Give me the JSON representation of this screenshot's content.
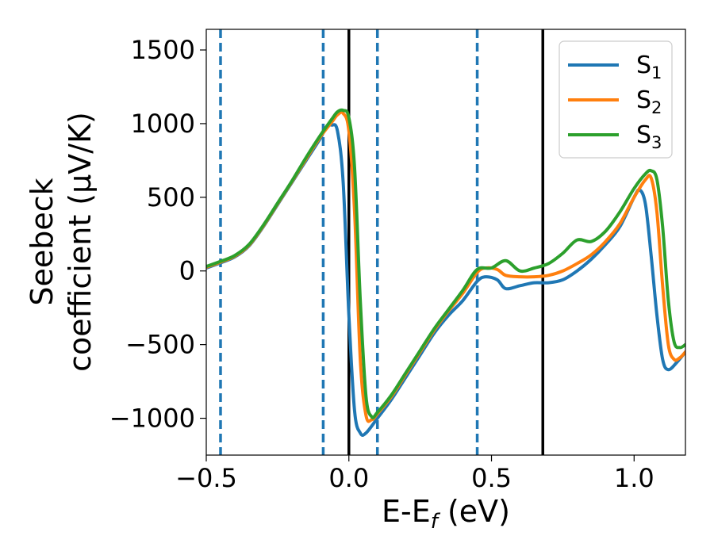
{
  "chart_data": {
    "type": "line",
    "xlabel": "E-E",
    "xlabel_sub": "f",
    "xlabel_unit": " (eV)",
    "ylabel_line1": "Seebeck",
    "ylabel_line2": "coefficient  (μV/K)",
    "xlim": [
      -0.5,
      1.18
    ],
    "ylim": [
      -1250,
      1640
    ],
    "xticks": [
      -0.5,
      0.0,
      0.5,
      1.0
    ],
    "xtick_labels": [
      "−0.5",
      "0.0",
      "0.5",
      "1.0"
    ],
    "yticks": [
      -1000,
      -500,
      0,
      500,
      1000,
      1500
    ],
    "ytick_labels": [
      "−1000",
      "−500",
      "0",
      "500",
      "1000",
      "1500"
    ],
    "grid": false,
    "legend_position": "top-right",
    "vlines_dashed": {
      "color": "#1f77b4",
      "x": [
        -0.45,
        -0.09,
        0.1,
        0.45
      ]
    },
    "vlines_solid": {
      "color": "#000000",
      "x": [
        0.0,
        0.68
      ]
    },
    "series": [
      {
        "name": "S",
        "name_sub": "1",
        "color": "#1f77b4",
        "points": [
          [
            -0.5,
            20
          ],
          [
            -0.45,
            55
          ],
          [
            -0.4,
            95
          ],
          [
            -0.35,
            170
          ],
          [
            -0.3,
            300
          ],
          [
            -0.25,
            450
          ],
          [
            -0.2,
            600
          ],
          [
            -0.15,
            750
          ],
          [
            -0.1,
            900
          ],
          [
            -0.08,
            975
          ],
          [
            -0.06,
            990
          ],
          [
            -0.04,
            950
          ],
          [
            -0.02,
            600
          ],
          [
            0.0,
            -300
          ],
          [
            0.02,
            -950
          ],
          [
            0.04,
            -1100
          ],
          [
            0.06,
            -1100
          ],
          [
            0.1,
            -1000
          ],
          [
            0.15,
            -870
          ],
          [
            0.2,
            -720
          ],
          [
            0.25,
            -570
          ],
          [
            0.3,
            -420
          ],
          [
            0.35,
            -300
          ],
          [
            0.4,
            -200
          ],
          [
            0.45,
            -70
          ],
          [
            0.48,
            -40
          ],
          [
            0.52,
            -60
          ],
          [
            0.55,
            -120
          ],
          [
            0.6,
            -100
          ],
          [
            0.65,
            -80
          ],
          [
            0.7,
            -80
          ],
          [
            0.75,
            -60
          ],
          [
            0.8,
            0
          ],
          [
            0.85,
            80
          ],
          [
            0.9,
            180
          ],
          [
            0.95,
            300
          ],
          [
            1.0,
            500
          ],
          [
            1.02,
            550
          ],
          [
            1.04,
            450
          ],
          [
            1.06,
            100
          ],
          [
            1.08,
            -300
          ],
          [
            1.1,
            -600
          ],
          [
            1.12,
            -670
          ],
          [
            1.15,
            -620
          ],
          [
            1.18,
            -550
          ]
        ]
      },
      {
        "name": "S",
        "name_sub": "2",
        "color": "#ff7f0e",
        "points": [
          [
            -0.5,
            25
          ],
          [
            -0.45,
            60
          ],
          [
            -0.4,
            100
          ],
          [
            -0.35,
            175
          ],
          [
            -0.3,
            305
          ],
          [
            -0.25,
            455
          ],
          [
            -0.2,
            605
          ],
          [
            -0.15,
            760
          ],
          [
            -0.1,
            910
          ],
          [
            -0.06,
            1010
          ],
          [
            -0.04,
            1060
          ],
          [
            -0.02,
            1070
          ],
          [
            0.0,
            950
          ],
          [
            0.02,
            400
          ],
          [
            0.04,
            -600
          ],
          [
            0.06,
            -980
          ],
          [
            0.08,
            -1010
          ],
          [
            0.1,
            -970
          ],
          [
            0.15,
            -850
          ],
          [
            0.2,
            -700
          ],
          [
            0.25,
            -550
          ],
          [
            0.3,
            -400
          ],
          [
            0.35,
            -270
          ],
          [
            0.4,
            -150
          ],
          [
            0.45,
            -10
          ],
          [
            0.48,
            20
          ],
          [
            0.52,
            10
          ],
          [
            0.55,
            -30
          ],
          [
            0.6,
            -40
          ],
          [
            0.65,
            -40
          ],
          [
            0.7,
            -30
          ],
          [
            0.75,
            0
          ],
          [
            0.8,
            50
          ],
          [
            0.85,
            110
          ],
          [
            0.9,
            200
          ],
          [
            0.95,
            320
          ],
          [
            1.0,
            500
          ],
          [
            1.04,
            620
          ],
          [
            1.06,
            630
          ],
          [
            1.08,
            400
          ],
          [
            1.1,
            -100
          ],
          [
            1.12,
            -500
          ],
          [
            1.14,
            -600
          ],
          [
            1.16,
            -590
          ],
          [
            1.18,
            -550
          ]
        ]
      },
      {
        "name": "S",
        "name_sub": "3",
        "color": "#2ca02c",
        "points": [
          [
            -0.5,
            30
          ],
          [
            -0.45,
            65
          ],
          [
            -0.4,
            105
          ],
          [
            -0.35,
            180
          ],
          [
            -0.3,
            310
          ],
          [
            -0.25,
            460
          ],
          [
            -0.2,
            610
          ],
          [
            -0.15,
            770
          ],
          [
            -0.1,
            920
          ],
          [
            -0.06,
            1030
          ],
          [
            -0.04,
            1080
          ],
          [
            -0.02,
            1090
          ],
          [
            0.0,
            1040
          ],
          [
            0.02,
            700
          ],
          [
            0.04,
            -200
          ],
          [
            0.06,
            -850
          ],
          [
            0.08,
            -990
          ],
          [
            0.1,
            -960
          ],
          [
            0.15,
            -840
          ],
          [
            0.2,
            -690
          ],
          [
            0.25,
            -540
          ],
          [
            0.3,
            -390
          ],
          [
            0.35,
            -260
          ],
          [
            0.4,
            -130
          ],
          [
            0.45,
            10
          ],
          [
            0.5,
            20
          ],
          [
            0.55,
            70
          ],
          [
            0.6,
            0
          ],
          [
            0.65,
            20
          ],
          [
            0.7,
            50
          ],
          [
            0.75,
            120
          ],
          [
            0.8,
            210
          ],
          [
            0.85,
            200
          ],
          [
            0.9,
            270
          ],
          [
            0.95,
            400
          ],
          [
            1.0,
            560
          ],
          [
            1.04,
            660
          ],
          [
            1.06,
            680
          ],
          [
            1.08,
            620
          ],
          [
            1.1,
            300
          ],
          [
            1.12,
            -200
          ],
          [
            1.14,
            -480
          ],
          [
            1.16,
            -520
          ],
          [
            1.18,
            -500
          ]
        ]
      }
    ]
  }
}
